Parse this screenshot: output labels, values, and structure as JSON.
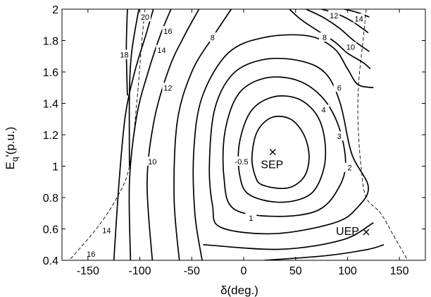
{
  "chart_data": {
    "type": "contour",
    "title": "",
    "xlabel": "δ(deg.)",
    "ylabel": "E_q'(p.u.)",
    "ylabel_main": "E",
    "ylabel_sub": "q",
    "ylabel_rest": "'(p.u.)",
    "xlim": [
      -175,
      175
    ],
    "ylim": [
      0.4,
      2
    ],
    "xticks": [
      -150,
      -100,
      -50,
      0,
      50,
      100,
      150
    ],
    "yticks": [
      0.4,
      0.6,
      0.8,
      1,
      1.2,
      1.4,
      1.6,
      1.8,
      2
    ],
    "xtick_labels": [
      "-150",
      "-100",
      "-50",
      "0",
      "50",
      "100",
      "150"
    ],
    "ytick_labels": [
      "0.4",
      "0.6",
      "0.8",
      "1",
      "1.2",
      "1.4",
      "1.6",
      "1.8",
      "2"
    ],
    "grid": false,
    "points": [
      {
        "name": "SEP",
        "x": 28,
        "y": 1.09
      },
      {
        "name": "UEP",
        "x": 118,
        "y": 0.58
      }
    ],
    "contour_labels": [
      {
        "text": "-0.5",
        "x": -2,
        "y": 1.03
      },
      {
        "text": "1",
        "x": 7,
        "y": 0.67
      },
      {
        "text": "2",
        "x": 102,
        "y": 0.99
      },
      {
        "text": "3",
        "x": 92,
        "y": 1.19
      },
      {
        "text": "4",
        "x": 77,
        "y": 1.36
      },
      {
        "text": "6",
        "x": 92,
        "y": 1.5
      },
      {
        "text": "8",
        "x": 78,
        "y": 1.82
      },
      {
        "text": "10",
        "x": 103,
        "y": 1.76
      },
      {
        "text": "12",
        "x": 87,
        "y": 1.96
      },
      {
        "text": "14",
        "x": 111,
        "y": 1.94
      },
      {
        "text": "8",
        "x": -30,
        "y": 1.82
      },
      {
        "text": "10",
        "x": -88,
        "y": 1.03
      },
      {
        "text": "12",
        "x": -73,
        "y": 1.5
      },
      {
        "text": "14",
        "x": -79,
        "y": 1.74
      },
      {
        "text": "16",
        "x": -73,
        "y": 1.86
      },
      {
        "text": "18",
        "x": -115,
        "y": 1.71
      },
      {
        "text": "20",
        "x": -95,
        "y": 1.95
      },
      {
        "text": "14",
        "x": -132,
        "y": 0.59
      },
      {
        "text": "16",
        "x": -147,
        "y": 0.44
      }
    ],
    "contours": [
      [
        [
          18,
          0.88
        ],
        [
          42,
          0.86
        ],
        [
          58,
          0.93
        ],
        [
          63,
          1.06
        ],
        [
          58,
          1.2
        ],
        [
          45,
          1.3
        ],
        [
          27,
          1.31
        ],
        [
          13,
          1.22
        ],
        [
          8,
          1.06
        ],
        [
          11,
          0.94
        ],
        [
          18,
          0.88
        ]
      ],
      [
        [
          5,
          0.82
        ],
        [
          35,
          0.77
        ],
        [
          64,
          0.82
        ],
        [
          77,
          0.98
        ],
        [
          78,
          1.17
        ],
        [
          70,
          1.33
        ],
        [
          52,
          1.43
        ],
        [
          28,
          1.44
        ],
        [
          7,
          1.35
        ],
        [
          -4,
          1.15
        ],
        [
          -4,
          0.95
        ],
        [
          5,
          0.82
        ]
      ],
      [
        [
          -10,
          0.73
        ],
        [
          30,
          0.68
        ],
        [
          72,
          0.72
        ],
        [
          93,
          0.88
        ],
        [
          98,
          1.05
        ],
        [
          90,
          1.28
        ],
        [
          74,
          1.45
        ],
        [
          50,
          1.55
        ],
        [
          20,
          1.56
        ],
        [
          -5,
          1.46
        ],
        [
          -18,
          1.22
        ],
        [
          -19,
          0.93
        ],
        [
          -10,
          0.73
        ]
      ],
      [
        [
          -22,
          0.61
        ],
        [
          30,
          0.57
        ],
        [
          88,
          0.64
        ],
        [
          110,
          0.74
        ],
        [
          120,
          0.87
        ],
        [
          104,
          1.08
        ],
        [
          93,
          1.4
        ],
        [
          79,
          1.59
        ],
        [
          55,
          1.67
        ],
        [
          20,
          1.68
        ],
        [
          -10,
          1.59
        ],
        [
          -28,
          1.36
        ],
        [
          -33,
          1.0
        ],
        [
          -30,
          0.75
        ],
        [
          -22,
          0.61
        ]
      ],
      [
        [
          -39,
          0.5
        ],
        [
          35,
          0.47
        ],
        [
          95,
          0.53
        ],
        [
          125,
          0.64
        ]
      ],
      [
        [
          125,
          1.5
        ],
        [
          110,
          1.52
        ],
        [
          100,
          1.62
        ],
        [
          87,
          1.75
        ],
        [
          62,
          1.83
        ],
        [
          20,
          1.82
        ],
        [
          -15,
          1.72
        ],
        [
          -40,
          1.44
        ],
        [
          -48,
          1.1
        ],
        [
          -47,
          0.7
        ],
        [
          -40,
          0.4
        ]
      ],
      [
        [
          -62,
          0.4
        ],
        [
          -67,
          0.8
        ],
        [
          -64,
          1.28
        ],
        [
          -50,
          1.6
        ],
        [
          -30,
          1.82
        ],
        [
          -12,
          2.0
        ]
      ],
      [
        [
          -88,
          0.4
        ],
        [
          -93,
          0.9
        ],
        [
          -86,
          1.3
        ],
        [
          -72,
          1.62
        ],
        [
          -58,
          1.82
        ],
        [
          -43,
          2.0
        ]
      ],
      [
        [
          -109,
          0.4
        ],
        [
          -110,
          0.9
        ],
        [
          -103,
          1.32
        ],
        [
          -92,
          1.6
        ],
        [
          -80,
          1.84
        ],
        [
          -70,
          2.0
        ]
      ],
      [
        [
          -125,
          0.4
        ],
        [
          -120,
          0.9
        ],
        [
          -114,
          1.32
        ],
        [
          -105,
          1.6
        ],
        [
          -94,
          1.84
        ],
        [
          -87,
          2.0
        ]
      ],
      [
        [
          -110,
          1.0
        ],
        [
          -110,
          1.45
        ],
        [
          -108,
          1.72
        ],
        [
          -101,
          2.0
        ]
      ],
      [
        [
          -112,
          1.45
        ],
        [
          -113,
          1.75
        ],
        [
          -112,
          2.0
        ]
      ],
      [
        [
          44,
          2.0
        ],
        [
          56,
          1.93
        ],
        [
          72,
          1.86
        ],
        [
          88,
          1.79
        ],
        [
          100,
          1.72
        ],
        [
          115,
          1.66
        ],
        [
          122,
          1.62
        ]
      ],
      [
        [
          60,
          2.0
        ],
        [
          76,
          1.95
        ],
        [
          92,
          1.88
        ],
        [
          106,
          1.8
        ],
        [
          121,
          1.73
        ]
      ],
      [
        [
          75,
          2.0
        ],
        [
          90,
          1.97
        ],
        [
          105,
          1.92
        ],
        [
          120,
          1.85
        ]
      ],
      [
        [
          97,
          2.0
        ],
        [
          109,
          1.98
        ],
        [
          121,
          1.95
        ]
      ],
      [
        [
          20,
          0.4
        ],
        [
          80,
          0.43
        ],
        [
          120,
          0.47
        ],
        [
          135,
          0.5
        ]
      ]
    ],
    "boundary_left": [
      [
        -95,
        2.0
      ],
      [
        -98,
        1.8
      ],
      [
        -103,
        1.4
      ],
      [
        -110,
        1.0
      ],
      [
        -122,
        0.8
      ],
      [
        -142,
        0.6
      ],
      [
        -168,
        0.4
      ]
    ],
    "boundary_right": [
      [
        118,
        2.0
      ],
      [
        115,
        1.8
      ],
      [
        111,
        1.55
      ],
      [
        110,
        1.3
      ],
      [
        113,
        1.0
      ],
      [
        118,
        0.8
      ],
      [
        132,
        0.7
      ],
      [
        145,
        0.55
      ],
      [
        158,
        0.4
      ]
    ]
  }
}
